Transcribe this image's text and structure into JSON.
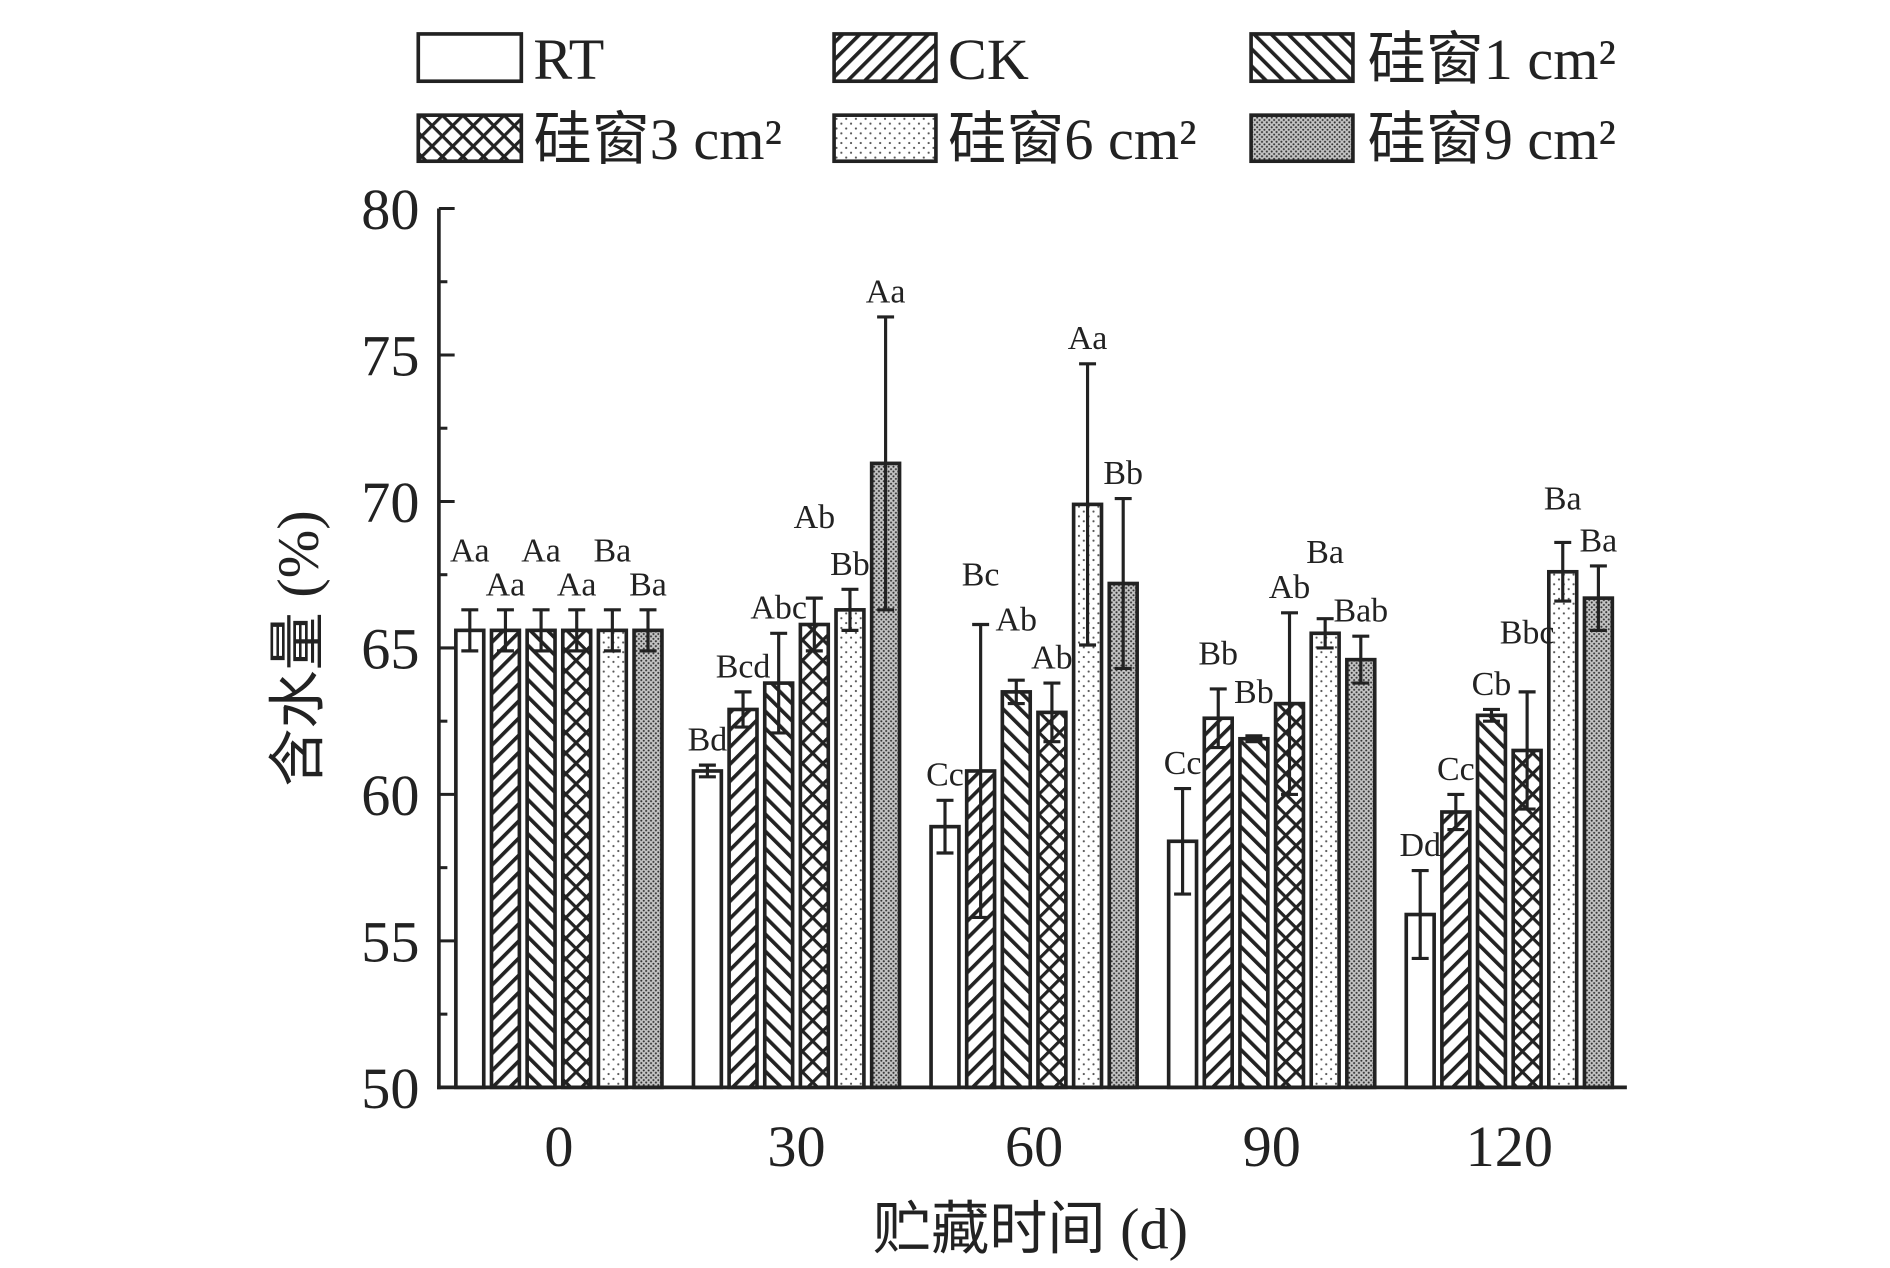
{
  "chart_data": {
    "type": "bar",
    "xlabel": "贮藏时间 (d)",
    "ylabel": "含水量 (%)",
    "categories": [
      "0",
      "30",
      "60",
      "90",
      "120"
    ],
    "ylim": [
      50,
      80
    ],
    "yticks": [
      50,
      55,
      60,
      65,
      70,
      75,
      80
    ],
    "y_minor_step": 2.5,
    "grid": false,
    "legend_placement": "top",
    "series": [
      {
        "name": "RT",
        "fill_pattern": "none",
        "values": [
          65.6,
          60.8,
          58.9,
          58.4,
          55.9
        ],
        "errors": [
          0.7,
          0.2,
          0.9,
          1.8,
          1.5
        ],
        "labels": [
          "Aa",
          "Bd",
          "Cc",
          "Cc",
          "Dd"
        ]
      },
      {
        "name": "CK",
        "fill_pattern": "diagonal-hatch",
        "values": [
          65.6,
          62.9,
          60.8,
          62.6,
          59.4
        ],
        "errors": [
          0.7,
          0.6,
          5.0,
          1.0,
          0.6
        ],
        "labels": [
          "Aa",
          "Bcd",
          "Bc",
          "Bb",
          "Cc"
        ]
      },
      {
        "name": "硅窗1 cm²",
        "fill_pattern": "back-diagonal-hatch",
        "values": [
          65.6,
          63.8,
          63.5,
          61.9,
          62.7
        ],
        "errors": [
          0.7,
          1.7,
          0.4,
          0.1,
          0.2
        ],
        "labels": [
          "Aa",
          "Abc",
          "Ab",
          "Bb",
          "Cb"
        ]
      },
      {
        "name": "硅窗3 cm²",
        "fill_pattern": "cross-hatch",
        "values": [
          65.6,
          65.8,
          62.8,
          63.1,
          61.5
        ],
        "errors": [
          0.7,
          0.9,
          1.0,
          3.1,
          2.0
        ],
        "labels": [
          "Aa",
          "Ab",
          "Ab",
          "Ab",
          "Bbc"
        ]
      },
      {
        "name": "硅窗6 cm²",
        "fill_pattern": "sparse-dots",
        "values": [
          65.6,
          66.3,
          69.9,
          65.5,
          67.6
        ],
        "errors": [
          0.7,
          0.7,
          4.8,
          0.5,
          1.0
        ],
        "labels": [
          "Ba",
          "Bb",
          "Aa",
          "Ba",
          "Ba"
        ]
      },
      {
        "name": "硅窗9 cm²",
        "fill_pattern": "dense-dots",
        "values": [
          65.6,
          71.3,
          67.2,
          64.6,
          66.7
        ],
        "errors": [
          0.7,
          5.0,
          2.9,
          0.8,
          1.1
        ],
        "labels": [
          "Ba",
          "Aa",
          "Bb",
          "Bab",
          "Ba"
        ]
      }
    ]
  }
}
